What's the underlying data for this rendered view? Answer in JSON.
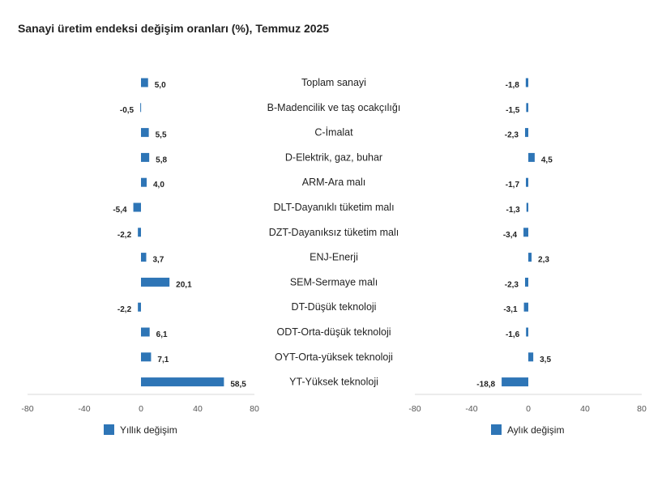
{
  "title": "Sanayi üretim endeksi değişim oranları (%), Temmuz 2025",
  "colors": {
    "bar": "#2e75b6",
    "axis": "#d9d9d9"
  },
  "chart_data": {
    "type": "bar",
    "orientation": "horizontal",
    "categories": [
      "Toplam sanayi",
      "B-Madencilik ve taş ocakçılığı",
      "C-İmalat",
      "D-Elektrik, gaz, buhar",
      "ARM-Ara malı",
      "DLT-Dayanıklı tüketim malı",
      "DZT-Dayanıksız tüketim malı",
      "ENJ-Enerji",
      "SEM-Sermaye malı",
      "DT-Düşük teknoloji",
      "ODT-Orta-düşük teknoloji",
      "OYT-Orta-yüksek teknoloji",
      "YT-Yüksek teknoloji"
    ],
    "xlim": [
      -80,
      80
    ],
    "xticks": [
      "-80",
      "-40",
      "0",
      "40",
      "80"
    ],
    "legend_position": "bottom",
    "grid": false,
    "series": [
      {
        "name": "Yıllık değişim",
        "values": [
          5.0,
          -0.5,
          5.5,
          5.8,
          4.0,
          -5.4,
          -2.2,
          3.7,
          20.1,
          -2.2,
          6.1,
          7.1,
          58.5
        ],
        "labels": [
          "5,0",
          "-0,5",
          "5,5",
          "5,8",
          "4,0",
          "-5,4",
          "-2,2",
          "3,7",
          "20,1",
          "-2,2",
          "6,1",
          "7,1",
          "58,5"
        ]
      },
      {
        "name": "Aylık değişim",
        "values": [
          -1.8,
          -1.5,
          -2.3,
          4.5,
          -1.7,
          -1.3,
          -3.4,
          2.3,
          -2.3,
          -3.1,
          -1.6,
          3.5,
          -18.8
        ],
        "labels": [
          "-1,8",
          "-1,5",
          "-2,3",
          "4,5",
          "-1,7",
          "-1,3",
          "-3,4",
          "2,3",
          "-2,3",
          "-3,1",
          "-1,6",
          "3,5",
          "-18,8"
        ]
      }
    ]
  }
}
